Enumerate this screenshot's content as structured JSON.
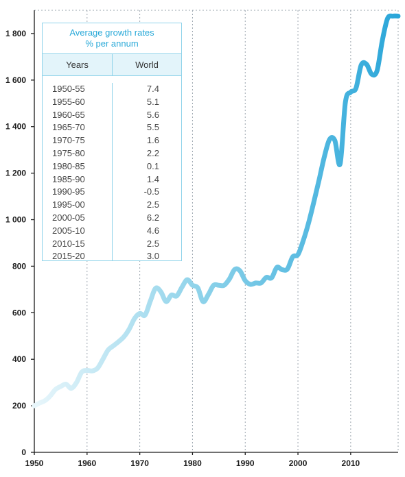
{
  "chart_data": {
    "type": "line",
    "title": "",
    "xlabel": "",
    "ylabel": "",
    "xlim": [
      1950,
      2019
    ],
    "ylim": [
      0,
      1900
    ],
    "x_ticks": [
      "1950",
      "1960",
      "1970",
      "1980",
      "1990",
      "2000",
      "2010"
    ],
    "y_ticks": [
      "0",
      "200",
      "400",
      "600",
      "800",
      "1 000",
      "1 200",
      "1 400",
      "1 600",
      "1 800"
    ],
    "grid": "vertical dotted",
    "color_start": "#e8f6fb",
    "color_end": "#2aa6d9",
    "series": [
      {
        "x": [
          1950,
          1951,
          1952,
          1953,
          1954,
          1955,
          1956,
          1957,
          1958,
          1959,
          1960,
          1961,
          1962,
          1963,
          1964,
          1965,
          1966,
          1967,
          1968,
          1969,
          1970,
          1971,
          1972,
          1973,
          1974,
          1975,
          1976,
          1977,
          1978,
          1979,
          1980,
          1981,
          1982,
          1983,
          1984,
          1985,
          1986,
          1987,
          1988,
          1989,
          1990,
          1991,
          1992,
          1993,
          1994,
          1995,
          1996,
          1997,
          1998,
          1999,
          2000,
          2001,
          2002,
          2003,
          2004,
          2005,
          2006,
          2007,
          2008,
          2009,
          2010,
          2011,
          2012,
          2013,
          2014,
          2015,
          2016,
          2017,
          2018,
          2019
        ],
        "y": [
          200,
          212,
          222,
          242,
          270,
          283,
          293,
          275,
          300,
          345,
          352,
          350,
          362,
          400,
          440,
          458,
          476,
          497,
          530,
          575,
          597,
          590,
          650,
          705,
          690,
          648,
          676,
          672,
          710,
          742,
          718,
          707,
          648,
          678,
          718,
          718,
          718,
          745,
          786,
          780,
          738,
          722,
          728,
          728,
          752,
          750,
          795,
          785,
          788,
          840,
          850,
          910,
          985,
          1075,
          1170,
          1270,
          1345,
          1340,
          1240,
          1505,
          1548,
          1565,
          1665,
          1668,
          1625,
          1640,
          1770,
          1865,
          1875,
          1875
        ]
      }
    ]
  },
  "table": {
    "title_line1": "Average growth rates",
    "title_line2": "% per annum",
    "col_years": "Years",
    "col_world": "World",
    "rows": [
      {
        "years": "1950-55",
        "world": "7.4"
      },
      {
        "years": "1955-60",
        "world": "5.1"
      },
      {
        "years": "1960-65",
        "world": "5.6"
      },
      {
        "years": "1965-70",
        "world": "5.5"
      },
      {
        "years": "1970-75",
        "world": "1.6"
      },
      {
        "years": "1975-80",
        "world": "2.2"
      },
      {
        "years": "1980-85",
        "world": "0.1"
      },
      {
        "years": "1985-90",
        "world": "1.4"
      },
      {
        "years": "1990-95",
        "world": "-0.5"
      },
      {
        "years": "1995-00",
        "world": "2.5"
      },
      {
        "years": "2000-05",
        "world": "6.2"
      },
      {
        "years": "2005-10",
        "world": "4.6"
      },
      {
        "years": "2010-15",
        "world": "2.5"
      },
      {
        "years": "2015-20",
        "world": "3.0"
      }
    ]
  }
}
